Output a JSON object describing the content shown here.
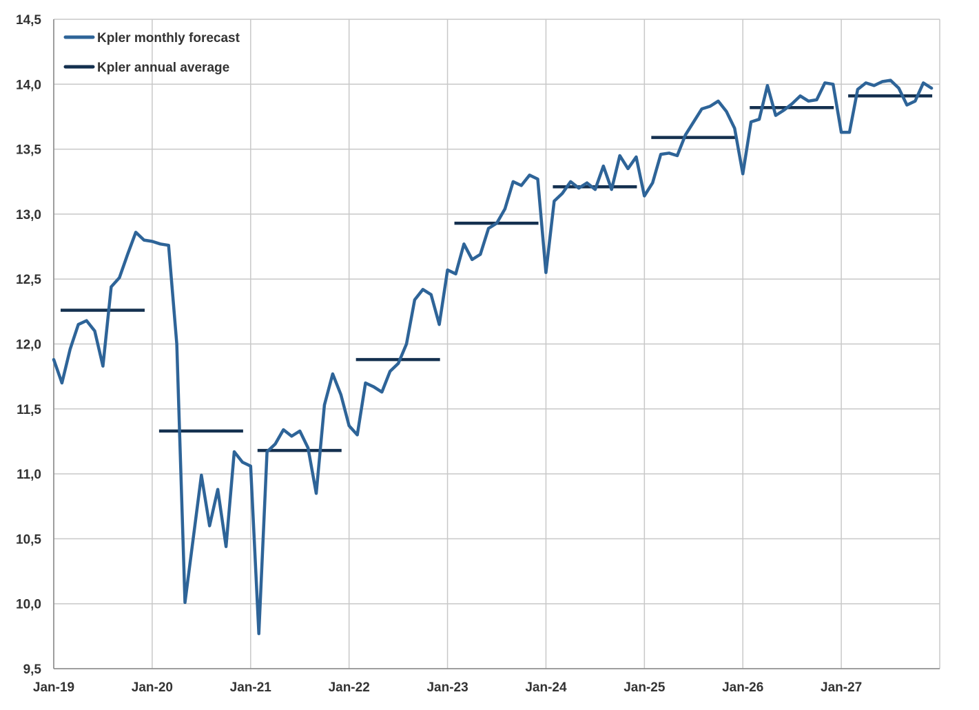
{
  "chart_data": {
    "type": "line",
    "title": "",
    "xlabel": "",
    "ylabel": "",
    "ylim": [
      9.5,
      14.5
    ],
    "yticks": [
      9.5,
      10.0,
      10.5,
      11.0,
      11.5,
      12.0,
      12.5,
      13.0,
      13.5,
      14.0,
      14.5
    ],
    "ytick_labels": [
      "9,5",
      "10,0",
      "10,5",
      "11,0",
      "11,5",
      "12,0",
      "12,5",
      "13,0",
      "13,5",
      "14,0",
      "14,5"
    ],
    "xlim": [
      "2019-01",
      "2027-12"
    ],
    "xtick_labels": [
      "Jan-19",
      "Jan-20",
      "Jan-21",
      "Jan-22",
      "Jan-23",
      "Jan-24",
      "Jan-25",
      "Jan-26",
      "Jan-27"
    ],
    "grid": true,
    "legend_position": "top-left",
    "colors": {
      "monthly": "#2e6498",
      "annual": "#14304f",
      "grid": "#c8c8c8",
      "axis": "#888888"
    },
    "series": [
      {
        "name": "Kpler monthly forecast",
        "kind": "line",
        "start": "2019-01",
        "values": [
          11.88,
          11.7,
          11.96,
          12.15,
          12.18,
          12.1,
          11.83,
          12.44,
          12.51,
          12.69,
          12.86,
          12.8,
          12.79,
          12.77,
          12.76,
          12.0,
          10.01,
          10.5,
          10.99,
          10.6,
          10.88,
          10.44,
          11.17,
          11.09,
          11.06,
          9.77,
          11.17,
          11.23,
          11.34,
          11.29,
          11.33,
          11.2,
          10.85,
          11.53,
          11.77,
          11.61,
          11.37,
          11.3,
          11.7,
          11.67,
          11.63,
          11.79,
          11.85,
          12.0,
          12.34,
          12.42,
          12.38,
          12.15,
          12.57,
          12.54,
          12.77,
          12.65,
          12.69,
          12.89,
          12.93,
          13.04,
          13.25,
          13.22,
          13.3,
          13.27,
          12.55,
          13.1,
          13.16,
          13.25,
          13.2,
          13.24,
          13.19,
          13.37,
          13.19,
          13.45,
          13.35,
          13.44,
          13.14,
          13.24,
          13.46,
          13.47,
          13.45,
          13.61,
          13.71,
          13.81,
          13.83,
          13.87,
          13.79,
          13.66,
          13.31,
          13.71,
          13.73,
          13.99,
          13.76,
          13.8,
          13.85,
          13.91,
          13.87,
          13.88,
          14.01,
          14.0,
          13.63,
          13.63,
          13.96,
          14.01,
          13.99,
          14.02,
          14.03,
          13.97,
          13.84,
          13.87,
          14.01,
          13.97
        ]
      },
      {
        "name": "Kpler annual average",
        "kind": "step",
        "years": [
          "2019",
          "2020",
          "2021",
          "2022",
          "2023",
          "2024",
          "2025",
          "2026",
          "2027"
        ],
        "values": [
          12.26,
          11.33,
          11.18,
          11.88,
          12.93,
          13.21,
          13.59,
          13.82,
          13.91
        ]
      }
    ]
  }
}
